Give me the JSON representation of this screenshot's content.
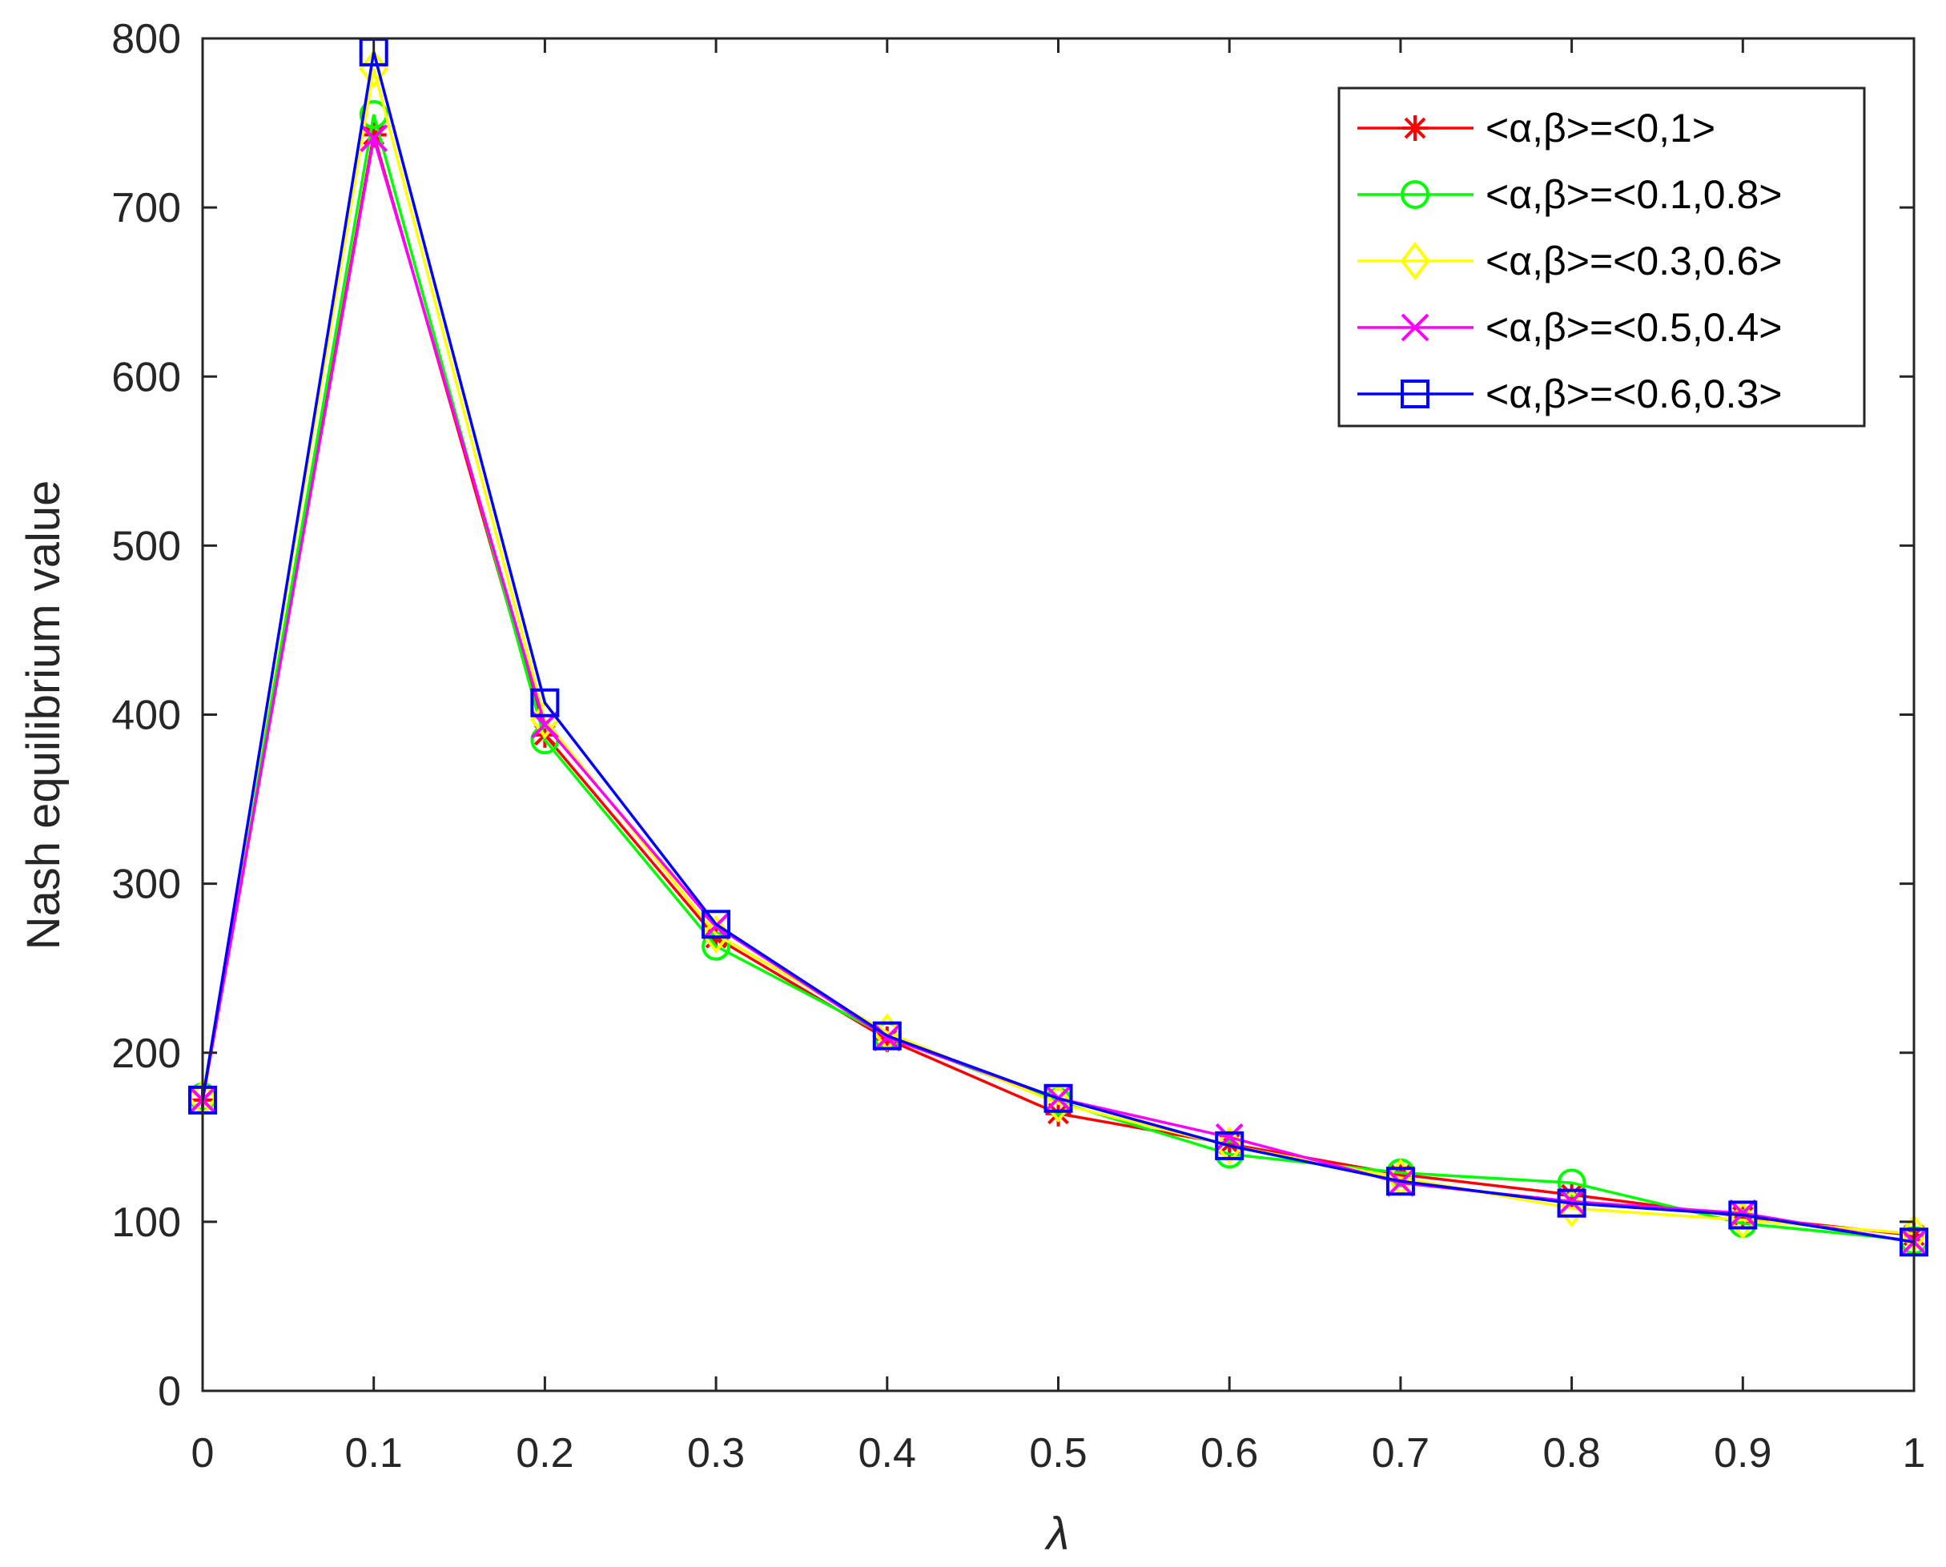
{
  "chart_data": {
    "type": "line",
    "xlabel": "λ",
    "ylabel": "Nash equilibrium value",
    "xlim": [
      0,
      1
    ],
    "ylim": [
      0,
      800
    ],
    "xticks": [
      "0",
      "0.1",
      "0.2",
      "0.3",
      "0.4",
      "0.5",
      "0.6",
      "0.7",
      "0.8",
      "0.9",
      "1"
    ],
    "yticks": [
      "0",
      "100",
      "200",
      "300",
      "400",
      "500",
      "600",
      "700",
      "800"
    ],
    "grid": false,
    "legend_position": "top-right",
    "x": [
      0,
      0.1,
      0.2,
      0.3,
      0.4,
      0.5,
      0.6,
      0.7,
      0.8,
      0.9,
      1
    ],
    "series": [
      {
        "name": "<α,β>=<0,1>",
        "color": "#ff0000",
        "marker": "asterisk",
        "values": [
          172,
          743,
          388,
          268,
          208,
          164,
          146,
          128,
          116,
          103,
          92
        ]
      },
      {
        "name": "<α,β>=<0.1,0.8>",
        "color": "#00ff00",
        "marker": "circle",
        "values": [
          174,
          755,
          385,
          263,
          210,
          171,
          140,
          129,
          123,
          99,
          89
        ]
      },
      {
        "name": "<α,β>=<0.3,0.6>",
        "color": "#ffff00",
        "marker": "diamond",
        "values": [
          173,
          782,
          397,
          270,
          212,
          170,
          145,
          126,
          108,
          101,
          93
        ]
      },
      {
        "name": "<α,β>=<0.5,0.4>",
        "color": "#ff00ff",
        "marker": "x",
        "values": [
          172,
          741,
          394,
          275,
          209,
          173,
          150,
          123,
          112,
          105,
          88
        ]
      },
      {
        "name": "<α,β>=<0.6,0.3>",
        "color": "#0000ff",
        "marker": "square",
        "values": [
          172,
          792,
          407,
          276,
          210,
          173,
          145,
          124,
          111,
          104,
          88
        ]
      }
    ]
  }
}
